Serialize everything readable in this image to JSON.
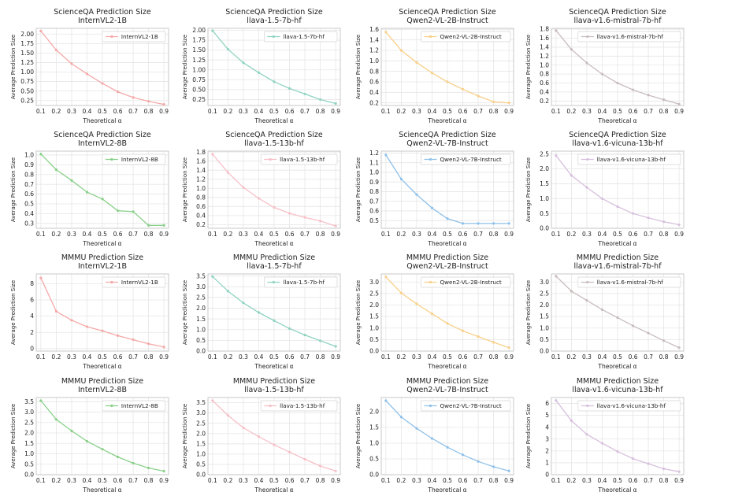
{
  "chart_data": [
    {
      "type": "line",
      "title": "ScienceQA Prediction Size",
      "subtitle": "InternVL2-1B",
      "xlabel": "Theoretical α",
      "ylabel": "Average Prediction Size",
      "x": [
        0.1,
        0.2,
        0.3,
        0.4,
        0.5,
        0.6,
        0.7,
        0.8,
        0.9
      ],
      "xticks": [
        "0.1",
        "0.2",
        "0.3",
        "0.4",
        "0.5",
        "0.6",
        "0.7",
        "0.8",
        "0.9"
      ],
      "xlim": [
        0.07,
        0.93
      ],
      "ylim": [
        0.12,
        2.15
      ],
      "yticks": [
        "0.25",
        "0.50",
        "0.75",
        "1.00",
        "1.25",
        "1.50",
        "1.75",
        "2.00"
      ],
      "grid": true,
      "legend_position": "top-right",
      "series": [
        {
          "name": "InternVL2-1B",
          "color": "#f4a9a8",
          "values": [
            2.08,
            1.58,
            1.22,
            0.95,
            0.7,
            0.48,
            0.33,
            0.23,
            0.15
          ]
        }
      ]
    },
    {
      "type": "line",
      "title": "ScienceQA Prediction Size",
      "subtitle": "llava-1.5-7b-hf",
      "xlabel": "Theoretical α",
      "ylabel": "Average Prediction Size",
      "x": [
        0.1,
        0.2,
        0.3,
        0.4,
        0.5,
        0.6,
        0.7,
        0.8,
        0.9
      ],
      "xticks": [
        "0.1",
        "0.2",
        "0.3",
        "0.4",
        "0.5",
        "0.6",
        "0.7",
        "0.8",
        "0.9"
      ],
      "xlim": [
        0.07,
        0.93
      ],
      "ylim": [
        0.1,
        2.05
      ],
      "yticks": [
        "0.25",
        "0.50",
        "0.75",
        "1.00",
        "1.25",
        "1.50",
        "1.75",
        "2.00"
      ],
      "grid": true,
      "legend_position": "top-right",
      "series": [
        {
          "name": "llava-1.5-7b-hf",
          "color": "#8fd3c1",
          "values": [
            1.99,
            1.52,
            1.18,
            0.93,
            0.7,
            0.53,
            0.39,
            0.25,
            0.15
          ]
        }
      ]
    },
    {
      "type": "line",
      "title": "ScienceQA Prediction Size",
      "subtitle": "Qwen2-VL-2B-Instruct",
      "xlabel": "Theoretical α",
      "ylabel": "Average Prediction Size",
      "x": [
        0.1,
        0.2,
        0.3,
        0.4,
        0.5,
        0.6,
        0.7,
        0.8,
        0.9
      ],
      "xticks": [
        "0.1",
        "0.2",
        "0.3",
        "0.4",
        "0.5",
        "0.6",
        "0.7",
        "0.8",
        "0.9"
      ],
      "xlim": [
        0.07,
        0.93
      ],
      "ylim": [
        0.15,
        1.62
      ],
      "yticks": [
        "0.2",
        "0.4",
        "0.6",
        "0.8",
        "1.0",
        "1.2",
        "1.4",
        "1.6"
      ],
      "grid": true,
      "legend_position": "top-right",
      "series": [
        {
          "name": "Qwen2-VL-2B-Instruct",
          "color": "#f9d08a",
          "values": [
            1.55,
            1.2,
            0.97,
            0.77,
            0.6,
            0.46,
            0.33,
            0.22,
            0.2
          ]
        }
      ]
    },
    {
      "type": "line",
      "title": "ScienceQA Prediction Size",
      "subtitle": "llava-v1.6-mistral-7b-hf",
      "xlabel": "Theoretical α",
      "ylabel": "Average Prediction Size",
      "x": [
        0.1,
        0.2,
        0.3,
        0.4,
        0.5,
        0.6,
        0.7,
        0.8,
        0.9
      ],
      "xticks": [
        "0.1",
        "0.2",
        "0.3",
        "0.4",
        "0.5",
        "0.6",
        "0.7",
        "0.8",
        "0.9"
      ],
      "xlim": [
        0.07,
        0.93
      ],
      "ylim": [
        0.1,
        1.82
      ],
      "yticks": [
        "0.2",
        "0.4",
        "0.6",
        "0.8",
        "1.0",
        "1.2",
        "1.4",
        "1.6",
        "1.8"
      ],
      "grid": true,
      "legend_position": "top-right",
      "series": [
        {
          "name": "llava-v1.6-mistral-7b-hf",
          "color": "#c8bcbe",
          "values": [
            1.77,
            1.35,
            1.05,
            0.8,
            0.6,
            0.45,
            0.33,
            0.23,
            0.13
          ]
        }
      ]
    },
    {
      "type": "line",
      "title": "ScienceQA Prediction Size",
      "subtitle": "InternVL2-8B",
      "xlabel": "Theoretical α",
      "ylabel": "Average Prediction Size",
      "x": [
        0.1,
        0.2,
        0.3,
        0.4,
        0.5,
        0.6,
        0.7,
        0.8,
        0.9
      ],
      "xticks": [
        "0.1",
        "0.2",
        "0.3",
        "0.4",
        "0.5",
        "0.6",
        "0.7",
        "0.8",
        "0.9"
      ],
      "xlim": [
        0.07,
        0.93
      ],
      "ylim": [
        0.25,
        1.04
      ],
      "yticks": [
        "0.3",
        "0.4",
        "0.5",
        "0.6",
        "0.7",
        "0.8",
        "0.9",
        "1.0"
      ],
      "grid": true,
      "legend_position": "top-right",
      "series": [
        {
          "name": "InternVL2-8B",
          "color": "#8ad08a",
          "values": [
            1.01,
            0.85,
            0.74,
            0.62,
            0.55,
            0.43,
            0.42,
            0.28,
            0.28
          ]
        }
      ]
    },
    {
      "type": "line",
      "title": "ScienceQA Prediction Size",
      "subtitle": "llava-1.5-13b-hf",
      "xlabel": "Theoretical α",
      "ylabel": "Average Prediction Size",
      "x": [
        0.1,
        0.2,
        0.3,
        0.4,
        0.5,
        0.6,
        0.7,
        0.8,
        0.9
      ],
      "xticks": [
        "0.1",
        "0.2",
        "0.3",
        "0.4",
        "0.5",
        "0.6",
        "0.7",
        "0.8",
        "0.9"
      ],
      "xlim": [
        0.07,
        0.93
      ],
      "ylim": [
        0.12,
        1.82
      ],
      "yticks": [
        "0.2",
        "0.4",
        "0.6",
        "0.8",
        "1.0",
        "1.2",
        "1.4",
        "1.6",
        "1.8"
      ],
      "grid": true,
      "legend_position": "top-right",
      "series": [
        {
          "name": "llava-1.5-13b-hf",
          "color": "#f7c0c8",
          "values": [
            1.75,
            1.35,
            1.02,
            0.78,
            0.58,
            0.45,
            0.36,
            0.28,
            0.17
          ]
        }
      ]
    },
    {
      "type": "line",
      "title": "ScienceQA Prediction Size",
      "subtitle": "Qwen2-VL-7B-Instruct",
      "xlabel": "Theoretical α",
      "ylabel": "Average Prediction Size",
      "x": [
        0.1,
        0.2,
        0.3,
        0.4,
        0.5,
        0.6,
        0.7,
        0.8,
        0.9
      ],
      "xticks": [
        "0.1",
        "0.2",
        "0.3",
        "0.4",
        "0.5",
        "0.6",
        "0.7",
        "0.8",
        "0.9"
      ],
      "xlim": [
        0.07,
        0.93
      ],
      "ylim": [
        0.42,
        1.22
      ],
      "yticks": [
        "0.5",
        "0.6",
        "0.7",
        "0.8",
        "0.9",
        "1.0",
        "1.1",
        "1.2"
      ],
      "grid": true,
      "legend_position": "top-right",
      "series": [
        {
          "name": "Qwen2-VL-7B-Instruct",
          "color": "#8fc1ea",
          "values": [
            1.18,
            0.93,
            0.77,
            0.63,
            0.52,
            0.47,
            0.47,
            0.47,
            0.47
          ]
        }
      ]
    },
    {
      "type": "line",
      "title": "ScienceQA Prediction Size",
      "subtitle": "llava-v1.6-vicuna-13b-hf",
      "xlabel": "Theoretical α",
      "ylabel": "Average Prediction Size",
      "x": [
        0.1,
        0.2,
        0.3,
        0.4,
        0.5,
        0.6,
        0.7,
        0.8,
        0.9
      ],
      "xticks": [
        "0.1",
        "0.2",
        "0.3",
        "0.4",
        "0.5",
        "0.6",
        "0.7",
        "0.8",
        "0.9"
      ],
      "xlim": [
        0.07,
        0.93
      ],
      "ylim": [
        0.0,
        2.6
      ],
      "yticks": [
        "0.0",
        "0.5",
        "1.0",
        "1.5",
        "2.0",
        "2.5"
      ],
      "grid": true,
      "legend_position": "top-right",
      "series": [
        {
          "name": "llava-v1.6-vicuna-13b-hf",
          "color": "#d7c0dd",
          "values": [
            2.45,
            1.78,
            1.38,
            1.0,
            0.73,
            0.5,
            0.35,
            0.22,
            0.12
          ]
        }
      ]
    },
    {
      "type": "line",
      "title": "MMMU Prediction Size",
      "subtitle": "InternVL2-1B",
      "xlabel": "Theoretical α",
      "ylabel": "Average Prediction Size",
      "x": [
        0.1,
        0.2,
        0.3,
        0.4,
        0.5,
        0.6,
        0.7,
        0.8,
        0.9
      ],
      "xticks": [
        "0.1",
        "0.2",
        "0.3",
        "0.4",
        "0.5",
        "0.6",
        "0.7",
        "0.8",
        "0.9"
      ],
      "xlim": [
        0.07,
        0.93
      ],
      "ylim": [
        -0.3,
        9.2
      ],
      "yticks": [
        "0",
        "2",
        "4",
        "6",
        "8"
      ],
      "grid": true,
      "legend_position": "top-right",
      "series": [
        {
          "name": "InternVL2-1B",
          "color": "#f4a9a8",
          "values": [
            8.7,
            4.6,
            3.5,
            2.7,
            2.2,
            1.6,
            1.1,
            0.6,
            0.2
          ]
        }
      ]
    },
    {
      "type": "line",
      "title": "MMMU Prediction Size",
      "subtitle": "llava-1.5-7b-hf",
      "xlabel": "Theoretical α",
      "ylabel": "Average Prediction Size",
      "x": [
        0.1,
        0.2,
        0.3,
        0.4,
        0.5,
        0.6,
        0.7,
        0.8,
        0.9
      ],
      "xticks": [
        "0.1",
        "0.2",
        "0.3",
        "0.4",
        "0.5",
        "0.6",
        "0.7",
        "0.8",
        "0.9"
      ],
      "xlim": [
        0.07,
        0.93
      ],
      "ylim": [
        0.0,
        3.6
      ],
      "yticks": [
        "0.0",
        "0.5",
        "1.0",
        "1.5",
        "2.0",
        "2.5",
        "3.0",
        "3.5"
      ],
      "grid": true,
      "legend_position": "top-right",
      "series": [
        {
          "name": "llava-1.5-7b-hf",
          "color": "#8fd3c1",
          "values": [
            3.48,
            2.8,
            2.25,
            1.8,
            1.42,
            1.05,
            0.75,
            0.48,
            0.22
          ]
        }
      ]
    },
    {
      "type": "line",
      "title": "MMMU Prediction Size",
      "subtitle": "Qwen2-VL-2B-Instruct",
      "xlabel": "Theoretical α",
      "ylabel": "Average Prediction Size",
      "x": [
        0.1,
        0.2,
        0.3,
        0.4,
        0.5,
        0.6,
        0.7,
        0.8,
        0.9
      ],
      "xticks": [
        "0.1",
        "0.2",
        "0.3",
        "0.4",
        "0.5",
        "0.6",
        "0.7",
        "0.8",
        "0.9"
      ],
      "xlim": [
        0.07,
        0.93
      ],
      "ylim": [
        0.0,
        3.35
      ],
      "yticks": [
        "0.0",
        "0.5",
        "1.0",
        "1.5",
        "2.0",
        "2.5",
        "3.0"
      ],
      "grid": true,
      "legend_position": "top-right",
      "series": [
        {
          "name": "Qwen2-VL-2B-Instruct",
          "color": "#f9d08a",
          "values": [
            3.22,
            2.52,
            2.05,
            1.62,
            1.2,
            0.88,
            0.63,
            0.38,
            0.15
          ]
        }
      ]
    },
    {
      "type": "line",
      "title": "MMMU Prediction Size",
      "subtitle": "llava-v1.6-mistral-7b-hf",
      "xlabel": "Theoretical α",
      "ylabel": "Average Prediction Size",
      "x": [
        0.1,
        0.2,
        0.3,
        0.4,
        0.5,
        0.6,
        0.7,
        0.8,
        0.9
      ],
      "xticks": [
        "0.1",
        "0.2",
        "0.3",
        "0.4",
        "0.5",
        "0.6",
        "0.7",
        "0.8",
        "0.9"
      ],
      "xlim": [
        0.07,
        0.93
      ],
      "ylim": [
        0.0,
        3.35
      ],
      "yticks": [
        "0.0",
        "0.5",
        "1.0",
        "1.5",
        "2.0",
        "2.5",
        "3.0"
      ],
      "grid": true,
      "legend_position": "top-right",
      "series": [
        {
          "name": "llava-v1.6-mistral-7b-hf",
          "color": "#c8bcbe",
          "values": [
            3.25,
            2.6,
            2.2,
            1.8,
            1.45,
            1.1,
            0.78,
            0.45,
            0.15
          ]
        }
      ]
    },
    {
      "type": "line",
      "title": "MMMU Prediction Size",
      "subtitle": "InternVL2-8B",
      "xlabel": "Theoretical α",
      "ylabel": "Average Prediction Size",
      "x": [
        0.1,
        0.2,
        0.3,
        0.4,
        0.5,
        0.6,
        0.7,
        0.8,
        0.9
      ],
      "xticks": [
        "0.1",
        "0.2",
        "0.3",
        "0.4",
        "0.5",
        "0.6",
        "0.7",
        "0.8",
        "0.9"
      ],
      "xlim": [
        0.07,
        0.93
      ],
      "ylim": [
        0.0,
        3.7
      ],
      "yticks": [
        "0.0",
        "0.5",
        "1.0",
        "1.5",
        "2.0",
        "2.5",
        "3.0",
        "3.5"
      ],
      "grid": true,
      "legend_position": "top-right",
      "series": [
        {
          "name": "InternVL2-8B",
          "color": "#8ad08a",
          "values": [
            3.55,
            2.65,
            2.1,
            1.6,
            1.22,
            0.85,
            0.55,
            0.32,
            0.17
          ]
        }
      ]
    },
    {
      "type": "line",
      "title": "MMMU Prediction Size",
      "subtitle": "llava-1.5-13b-hf",
      "xlabel": "Theoretical α",
      "ylabel": "Average Prediction Size",
      "x": [
        0.1,
        0.2,
        0.3,
        0.4,
        0.5,
        0.6,
        0.7,
        0.8,
        0.9
      ],
      "xticks": [
        "0.1",
        "0.2",
        "0.3",
        "0.4",
        "0.5",
        "0.6",
        "0.7",
        "0.8",
        "0.9"
      ],
      "xlim": [
        0.07,
        0.93
      ],
      "ylim": [
        0.0,
        3.75
      ],
      "yticks": [
        "0.0",
        "0.5",
        "1.0",
        "1.5",
        "2.0",
        "2.5",
        "3.0",
        "3.5"
      ],
      "grid": true,
      "legend_position": "top-right",
      "series": [
        {
          "name": "llava-1.5-13b-hf",
          "color": "#f7c0c8",
          "values": [
            3.6,
            2.88,
            2.28,
            1.85,
            1.45,
            1.1,
            0.75,
            0.42,
            0.18
          ]
        }
      ]
    },
    {
      "type": "line",
      "title": "MMMU Prediction Size",
      "subtitle": "Qwen2-VL-7B-Instruct",
      "xlabel": "Theoretical α",
      "ylabel": "Average Prediction Size",
      "x": [
        0.1,
        0.2,
        0.3,
        0.4,
        0.5,
        0.6,
        0.7,
        0.8,
        0.9
      ],
      "xticks": [
        "0.1",
        "0.2",
        "0.3",
        "0.4",
        "0.5",
        "0.6",
        "0.7",
        "0.8",
        "0.9"
      ],
      "xlim": [
        0.07,
        0.93
      ],
      "ylim": [
        0.0,
        2.45
      ],
      "yticks": [
        "0.0",
        "0.5",
        "1.0",
        "1.5",
        "2.0"
      ],
      "grid": true,
      "legend_position": "top-right",
      "series": [
        {
          "name": "Qwen2-VL-7B-Instruct",
          "color": "#8fc1ea",
          "values": [
            2.35,
            1.83,
            1.47,
            1.15,
            0.87,
            0.63,
            0.42,
            0.25,
            0.12
          ]
        }
      ]
    },
    {
      "type": "line",
      "title": "MMMU Prediction Size",
      "subtitle": "llava-v1.6-vicuna-13b-hf",
      "xlabel": "Theoretical α",
      "ylabel": "Average Prediction Size",
      "x": [
        0.1,
        0.2,
        0.3,
        0.4,
        0.5,
        0.6,
        0.7,
        0.8,
        0.9
      ],
      "xticks": [
        "0.1",
        "0.2",
        "0.3",
        "0.4",
        "0.5",
        "0.6",
        "0.7",
        "0.8",
        "0.9"
      ],
      "xlim": [
        0.07,
        0.93
      ],
      "ylim": [
        0.0,
        6.5
      ],
      "yticks": [
        "0",
        "1",
        "2",
        "3",
        "4",
        "5",
        "6"
      ],
      "grid": true,
      "legend_position": "top-right",
      "series": [
        {
          "name": "llava-v1.6-vicuna-13b-hf",
          "color": "#d7c0dd",
          "values": [
            6.25,
            4.55,
            3.4,
            2.65,
            1.95,
            1.35,
            0.92,
            0.5,
            0.25
          ]
        }
      ]
    }
  ]
}
